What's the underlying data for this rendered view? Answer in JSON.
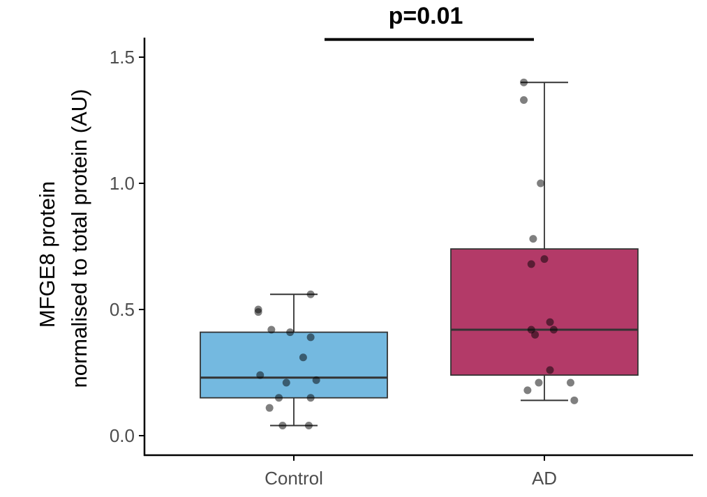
{
  "chart_data": {
    "type": "boxplot",
    "ylabel_line1": "MFGE8 protein",
    "ylabel_line2": "normalised to total protein (AU)",
    "xlabel": "",
    "ylim": [
      -0.08,
      1.56
    ],
    "yticks": [
      0.0,
      0.5,
      1.0,
      1.5
    ],
    "ytick_labels": [
      "0.0",
      "0.5",
      "1.0",
      "1.5"
    ],
    "categories": [
      "Control",
      "AD"
    ],
    "grid": false,
    "legend": "none",
    "groups": [
      {
        "name": "Control",
        "color": "#74b9e0",
        "box": {
          "whisker_low": 0.04,
          "q1": 0.15,
          "median": 0.23,
          "q3": 0.41,
          "whisker_high": 0.56
        },
        "points": [
          {
            "dx": 0.09,
            "y": 0.56
          },
          {
            "dx": -0.19,
            "y": 0.5
          },
          {
            "dx": -0.19,
            "y": 0.49
          },
          {
            "dx": -0.12,
            "y": 0.42
          },
          {
            "dx": -0.02,
            "y": 0.41
          },
          {
            "dx": 0.09,
            "y": 0.39
          },
          {
            "dx": 0.05,
            "y": 0.31
          },
          {
            "dx": -0.18,
            "y": 0.24
          },
          {
            "dx": 0.12,
            "y": 0.22
          },
          {
            "dx": -0.04,
            "y": 0.21
          },
          {
            "dx": -0.08,
            "y": 0.15
          },
          {
            "dx": 0.09,
            "y": 0.15
          },
          {
            "dx": -0.13,
            "y": 0.11
          },
          {
            "dx": -0.06,
            "y": 0.04
          },
          {
            "dx": 0.08,
            "y": 0.04
          }
        ]
      },
      {
        "name": "AD",
        "color": "#b33a68",
        "box": {
          "whisker_low": 0.14,
          "q1": 0.24,
          "median": 0.42,
          "q3": 0.74,
          "whisker_high": 1.4
        },
        "points": [
          {
            "dx": -0.11,
            "y": 1.4
          },
          {
            "dx": -0.11,
            "y": 1.33
          },
          {
            "dx": -0.02,
            "y": 1.0
          },
          {
            "dx": -0.06,
            "y": 0.78
          },
          {
            "dx": 0.0,
            "y": 0.7
          },
          {
            "dx": -0.07,
            "y": 0.68
          },
          {
            "dx": 0.03,
            "y": 0.45
          },
          {
            "dx": -0.07,
            "y": 0.42
          },
          {
            "dx": 0.05,
            "y": 0.42
          },
          {
            "dx": -0.05,
            "y": 0.4
          },
          {
            "dx": 0.03,
            "y": 0.26
          },
          {
            "dx": -0.09,
            "y": 0.18
          },
          {
            "dx": -0.03,
            "y": 0.21
          },
          {
            "dx": 0.14,
            "y": 0.21
          },
          {
            "dx": 0.16,
            "y": 0.14
          }
        ]
      }
    ],
    "annotation": {
      "text": "p=0.01",
      "y": 1.57
    }
  }
}
